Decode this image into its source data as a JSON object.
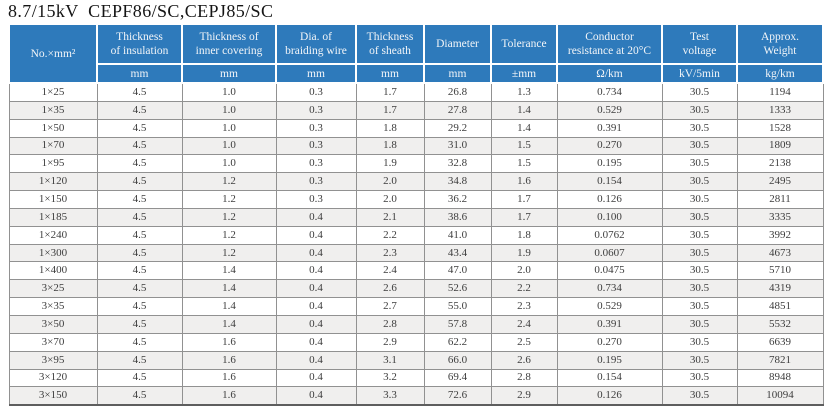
{
  "title": "8.7/15kV  CEPF86/SC,CEPJ85/SC",
  "table": {
    "columns": [
      {
        "label": "No.×mm²",
        "unit": ""
      },
      {
        "label": "Thickness\nof insulation",
        "unit": "mm"
      },
      {
        "label": "Thickness of\ninner covering",
        "unit": "mm"
      },
      {
        "label": "Dia. of\nbraiding wire",
        "unit": "mm"
      },
      {
        "label": "Thickness\nof sheath",
        "unit": "mm"
      },
      {
        "label": "Diameter",
        "unit": "mm"
      },
      {
        "label": "Tolerance",
        "unit": "±mm"
      },
      {
        "label": "Conductor\nresistance at 20°C",
        "unit": "Ω/km"
      },
      {
        "label": "Test\nvoltage",
        "unit": "kV/5min"
      },
      {
        "label": "Approx.\nWeight",
        "unit": "kg/km"
      }
    ],
    "rows": [
      [
        "1×25",
        "4.5",
        "1.0",
        "0.3",
        "1.7",
        "26.8",
        "1.3",
        "0.734",
        "30.5",
        "1194"
      ],
      [
        "1×35",
        "4.5",
        "1.0",
        "0.3",
        "1.7",
        "27.8",
        "1.4",
        "0.529",
        "30.5",
        "1333"
      ],
      [
        "1×50",
        "4.5",
        "1.0",
        "0.3",
        "1.8",
        "29.2",
        "1.4",
        "0.391",
        "30.5",
        "1528"
      ],
      [
        "1×70",
        "4.5",
        "1.0",
        "0.3",
        "1.8",
        "31.0",
        "1.5",
        "0.270",
        "30.5",
        "1809"
      ],
      [
        "1×95",
        "4.5",
        "1.0",
        "0.3",
        "1.9",
        "32.8",
        "1.5",
        "0.195",
        "30.5",
        "2138"
      ],
      [
        "1×120",
        "4.5",
        "1.2",
        "0.3",
        "2.0",
        "34.8",
        "1.6",
        "0.154",
        "30.5",
        "2495"
      ],
      [
        "1×150",
        "4.5",
        "1.2",
        "0.3",
        "2.0",
        "36.2",
        "1.7",
        "0.126",
        "30.5",
        "2811"
      ],
      [
        "1×185",
        "4.5",
        "1.2",
        "0.4",
        "2.1",
        "38.6",
        "1.7",
        "0.100",
        "30.5",
        "3335"
      ],
      [
        "1×240",
        "4.5",
        "1.2",
        "0.4",
        "2.2",
        "41.0",
        "1.8",
        "0.0762",
        "30.5",
        "3992"
      ],
      [
        "1×300",
        "4.5",
        "1.2",
        "0.4",
        "2.3",
        "43.4",
        "1.9",
        "0.0607",
        "30.5",
        "4673"
      ],
      [
        "1×400",
        "4.5",
        "1.4",
        "0.4",
        "2.4",
        "47.0",
        "2.0",
        "0.0475",
        "30.5",
        "5710"
      ],
      [
        "3×25",
        "4.5",
        "1.4",
        "0.4",
        "2.6",
        "52.6",
        "2.2",
        "0.734",
        "30.5",
        "4319"
      ],
      [
        "3×35",
        "4.5",
        "1.4",
        "0.4",
        "2.7",
        "55.0",
        "2.3",
        "0.529",
        "30.5",
        "4851"
      ],
      [
        "3×50",
        "4.5",
        "1.4",
        "0.4",
        "2.8",
        "57.8",
        "2.4",
        "0.391",
        "30.5",
        "5532"
      ],
      [
        "3×70",
        "4.5",
        "1.6",
        "0.4",
        "2.9",
        "62.2",
        "2.5",
        "0.270",
        "30.5",
        "6639"
      ],
      [
        "3×95",
        "4.5",
        "1.6",
        "0.4",
        "3.1",
        "66.0",
        "2.6",
        "0.195",
        "30.5",
        "7821"
      ],
      [
        "3×120",
        "4.5",
        "1.6",
        "0.4",
        "3.2",
        "69.4",
        "2.8",
        "0.154",
        "30.5",
        "8948"
      ],
      [
        "3×150",
        "4.5",
        "1.6",
        "0.4",
        "3.3",
        "72.6",
        "2.9",
        "0.126",
        "30.5",
        "10094"
      ]
    ]
  },
  "colors": {
    "header_blue": "#2e7abb",
    "stripe_gray": "#f0efee",
    "grid_border": "#919191",
    "bottom_border": "#5e5e5e"
  }
}
